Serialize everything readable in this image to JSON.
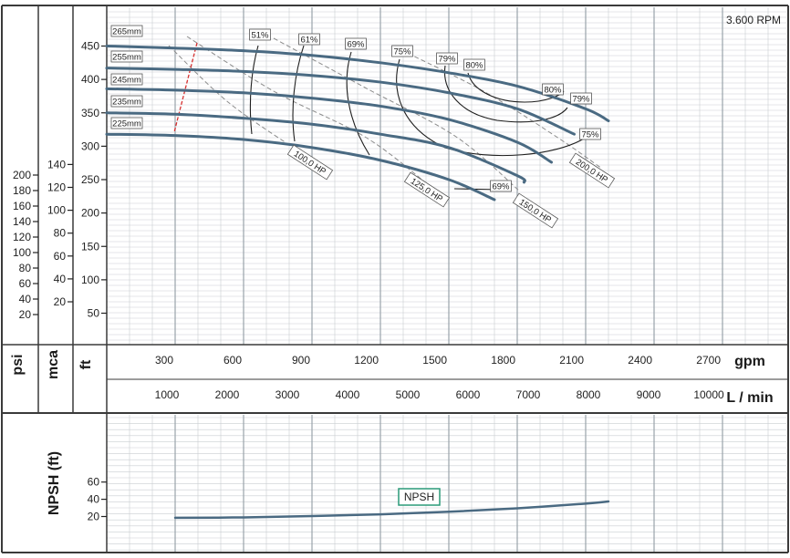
{
  "chart_data": [
    {
      "type": "line",
      "annotation": "3.600 RPM",
      "xlim": [
        0,
        2730
      ],
      "ylim_ft": [
        0,
        470
      ],
      "grid": true,
      "axes": {
        "psi": {
          "label": "psi",
          "ticks": [
            20,
            40,
            60,
            80,
            100,
            120,
            140,
            160,
            180,
            200
          ]
        },
        "mca": {
          "label": "mca",
          "ticks": [
            20,
            40,
            60,
            80,
            100,
            120,
            140
          ]
        },
        "ft": {
          "label": "ft",
          "ticks": [
            50,
            100,
            150,
            200,
            250,
            300,
            350,
            400,
            450
          ]
        },
        "gpm": {
          "label": "gpm",
          "ticks": [
            300,
            600,
            900,
            1200,
            1500,
            1800,
            2100,
            2400,
            2700
          ]
        },
        "lmin": {
          "label": "L / min",
          "ticks": [
            1000,
            2000,
            3000,
            4000,
            5000,
            6000,
            7000,
            8000,
            9000,
            10000
          ]
        }
      },
      "series": [
        {
          "name": "265mm",
          "x": [
            0,
            300,
            600,
            900,
            1200,
            1500,
            1800,
            2100,
            2200
          ],
          "y": [
            450,
            447,
            443,
            436,
            425,
            410,
            390,
            356,
            338
          ]
        },
        {
          "name": "255mm",
          "x": [
            0,
            300,
            600,
            900,
            1200,
            1500,
            1800,
            2050
          ],
          "y": [
            417,
            415,
            412,
            406,
            396,
            380,
            356,
            318
          ]
        },
        {
          "name": "245mm",
          "x": [
            0,
            300,
            600,
            900,
            1200,
            1500,
            1800,
            1950
          ],
          "y": [
            386,
            384,
            380,
            372,
            360,
            340,
            306,
            276
          ]
        },
        {
          "name": "235mm",
          "x": [
            0,
            300,
            600,
            900,
            1200,
            1500,
            1800,
            1830
          ],
          "y": [
            350,
            348,
            342,
            333,
            318,
            298,
            256,
            246
          ]
        },
        {
          "name": "225mm",
          "x": [
            0,
            300,
            600,
            900,
            1200,
            1500,
            1700
          ],
          "y": [
            318,
            316,
            310,
            298,
            279,
            250,
            220
          ]
        }
      ],
      "efficiency_labels": [
        "51%",
        "61%",
        "69%",
        "75%",
        "79%",
        "80%",
        "80%",
        "79%",
        "75%",
        "69%"
      ],
      "power_labels": [
        "100,0 HP",
        "125,0 HP",
        "150,0 HP",
        "200,0 HP"
      ]
    },
    {
      "type": "line",
      "ylabel": "NPSH (ft)",
      "yticks": [
        20,
        40,
        60
      ],
      "legend": "NPSH",
      "series": [
        {
          "name": "NPSH",
          "x": [
            300,
            600,
            900,
            1200,
            1500,
            1800,
            2100,
            2200
          ],
          "y": [
            18.5,
            19,
            20.5,
            22.5,
            25.5,
            29.5,
            35,
            37.5
          ]
        }
      ]
    }
  ]
}
